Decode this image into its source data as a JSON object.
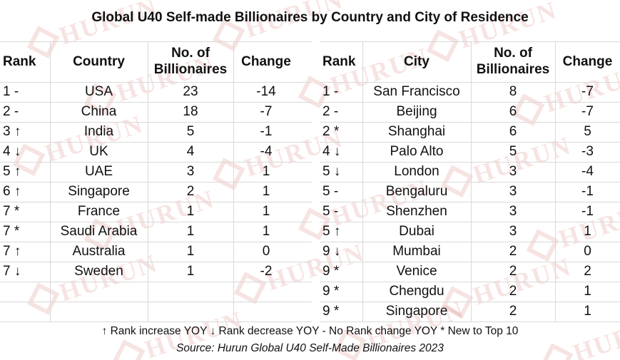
{
  "title": "Global U40 Self-made Billionaires by Country and City of Residence",
  "country_table": {
    "headers": {
      "rank": "Rank",
      "name": "Country",
      "count": "No. of Billionaires",
      "change": "Change"
    },
    "rows": [
      {
        "rank": "1 -",
        "name": "USA",
        "count": "23",
        "change": "-14"
      },
      {
        "rank": "2 -",
        "name": "China",
        "count": "18",
        "change": "-7"
      },
      {
        "rank": "3 ↑",
        "name": "India",
        "count": "5",
        "change": "-1"
      },
      {
        "rank": "4 ↓",
        "name": "UK",
        "count": "4",
        "change": "-4"
      },
      {
        "rank": "5 ↑",
        "name": "UAE",
        "count": "3",
        "change": "1"
      },
      {
        "rank": "6 ↑",
        "name": "Singapore",
        "count": "2",
        "change": "1"
      },
      {
        "rank": "7 *",
        "name": "France",
        "count": "1",
        "change": "1"
      },
      {
        "rank": "7 *",
        "name": "Saudi Arabia",
        "count": "1",
        "change": "1"
      },
      {
        "rank": "7 ↑",
        "name": "Australia",
        "count": "1",
        "change": "0"
      },
      {
        "rank": "7 ↓",
        "name": "Sweden",
        "count": "1",
        "change": "-2"
      }
    ]
  },
  "city_table": {
    "headers": {
      "rank": "Rank",
      "name": "City",
      "count": "No. of Billionaires",
      "change": "Change"
    },
    "rows": [
      {
        "rank": "1 -",
        "name": "San Francisco",
        "count": "8",
        "change": "-7"
      },
      {
        "rank": "2 -",
        "name": "Beijing",
        "count": "6",
        "change": "-7"
      },
      {
        "rank": "2 *",
        "name": "Shanghai",
        "count": "6",
        "change": "5"
      },
      {
        "rank": "4 ↓",
        "name": "Palo Alto",
        "count": "5",
        "change": "-3"
      },
      {
        "rank": "5 ↓",
        "name": "London",
        "count": "3",
        "change": "-4"
      },
      {
        "rank": "5 -",
        "name": "Bengaluru",
        "count": "3",
        "change": "-1"
      },
      {
        "rank": "5 -",
        "name": "Shenzhen",
        "count": "3",
        "change": "-1"
      },
      {
        "rank": "5 ↑",
        "name": "Dubai",
        "count": "3",
        "change": "1"
      },
      {
        "rank": "9 ↓",
        "name": "Mumbai",
        "count": "2",
        "change": "0"
      },
      {
        "rank": "9 *",
        "name": "Venice",
        "count": "2",
        "change": "2"
      },
      {
        "rank": "9 *",
        "name": "Chengdu",
        "count": "2",
        "change": "1"
      },
      {
        "rank": "9 *",
        "name": "Singapore",
        "count": "2",
        "change": "1"
      }
    ]
  },
  "legend": "↑ Rank increase YOY ↓ Rank decrease YOY - No Rank change YOY * New to Top 10",
  "source": "Source: Hurun Global U40 Self-Made Billionaires 2023",
  "watermark": {
    "text": "HURUN",
    "color": "#c0392b",
    "icon": "hurun-logo-icon"
  }
}
